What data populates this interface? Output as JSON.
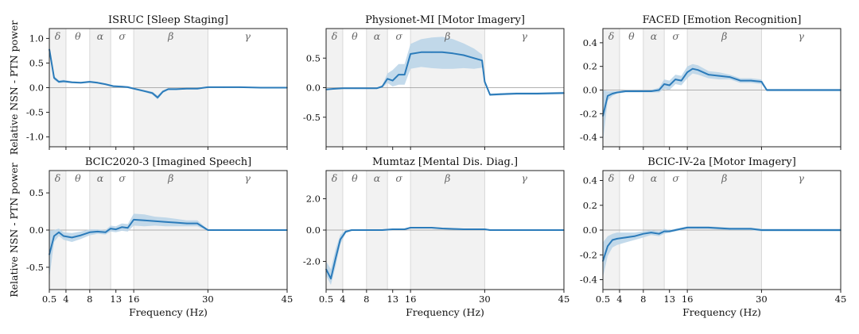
{
  "figure": {
    "ylabel": "Relative NSN - PTN power",
    "xlabel": "Frequency (Hz)",
    "xticks": [
      0.5,
      4,
      8,
      13,
      16,
      30,
      45
    ],
    "xtick_labels": [
      "0.5",
      "4",
      "8",
      "13",
      "16",
      "30",
      "45"
    ],
    "bands": [
      {
        "label": "δ",
        "range": [
          0.5,
          4
        ]
      },
      {
        "label": "θ",
        "range": [
          4,
          8
        ]
      },
      {
        "label": "α",
        "range": [
          8,
          12
        ]
      },
      {
        "label": "σ",
        "range": [
          12,
          16
        ]
      },
      {
        "label": "β",
        "range": [
          16,
          30
        ]
      },
      {
        "label": "γ",
        "range": [
          30,
          45
        ]
      }
    ],
    "colors": {
      "line": "#2b7bba",
      "band_fill": "#b9d3e8",
      "shade": "#f2f2f2",
      "zero": "#999999",
      "grid": "#d8d8d8"
    }
  },
  "chart_data": [
    {
      "type": "line",
      "title": "ISRUC [Sleep Staging]",
      "xlim": [
        0.5,
        45
      ],
      "ylim": [
        -1.2,
        1.2
      ],
      "yticks": [
        1.0,
        0.5,
        0.0,
        -0.5,
        -1.0
      ],
      "ytick_labels": [
        "1.0",
        "0.5",
        "0.0",
        "-0.5",
        "-1.0"
      ],
      "x": [
        0.5,
        1.5,
        2.5,
        3.5,
        5,
        6.5,
        8,
        9.5,
        11,
        12.5,
        14,
        15,
        16,
        18,
        19.5,
        20.5,
        21.5,
        22.5,
        24,
        26,
        28,
        30,
        33,
        36,
        40,
        45
      ],
      "y": [
        0.78,
        0.2,
        0.12,
        0.13,
        0.11,
        0.1,
        0.12,
        0.1,
        0.07,
        0.03,
        0.02,
        0.01,
        -0.02,
        -0.07,
        -0.11,
        -0.2,
        -0.08,
        -0.03,
        -0.03,
        -0.02,
        -0.02,
        0.01,
        0.01,
        0.01,
        0.0,
        0.0
      ],
      "band_low": [
        0.72,
        0.16,
        0.09,
        0.1,
        0.09,
        0.08,
        0.1,
        0.08,
        0.05,
        0.01,
        0.0,
        -0.01,
        -0.04,
        -0.09,
        -0.14,
        -0.24,
        -0.11,
        -0.05,
        -0.05,
        -0.03,
        -0.03,
        0.0,
        0.0,
        0.0,
        -0.01,
        -0.01
      ],
      "band_high": [
        0.84,
        0.24,
        0.15,
        0.16,
        0.13,
        0.12,
        0.14,
        0.12,
        0.09,
        0.05,
        0.04,
        0.03,
        0.0,
        -0.05,
        -0.08,
        -0.16,
        -0.05,
        -0.01,
        -0.01,
        -0.01,
        -0.01,
        0.02,
        0.02,
        0.02,
        0.01,
        0.01
      ]
    },
    {
      "type": "line",
      "title": "Physionet-MI [Motor Imagery]",
      "xlim": [
        0.5,
        45
      ],
      "ylim": [
        -1.0,
        1.0
      ],
      "yticks": [
        0.5,
        0.0,
        -0.5
      ],
      "ytick_labels": [
        "0.5",
        "0.0",
        "-0.5"
      ],
      "x": [
        0.5,
        2,
        4,
        6,
        8,
        10,
        11,
        12,
        13,
        14,
        15,
        16,
        18,
        20,
        22,
        24,
        26,
        28,
        29.5,
        30,
        31,
        33,
        36,
        40,
        45
      ],
      "y": [
        -0.03,
        -0.02,
        -0.01,
        -0.01,
        -0.01,
        -0.01,
        0.02,
        0.15,
        0.12,
        0.22,
        0.22,
        0.57,
        0.6,
        0.6,
        0.6,
        0.58,
        0.55,
        0.5,
        0.46,
        0.1,
        -0.12,
        -0.11,
        -0.1,
        -0.1,
        -0.09
      ],
      "band_low": [
        -0.04,
        -0.03,
        -0.02,
        -0.02,
        -0.02,
        -0.02,
        0.0,
        0.08,
        0.02,
        0.05,
        0.05,
        0.32,
        0.35,
        0.33,
        0.32,
        0.32,
        0.33,
        0.32,
        0.34,
        0.06,
        -0.14,
        -0.13,
        -0.12,
        -0.12,
        -0.11
      ],
      "band_high": [
        -0.02,
        -0.01,
        0.0,
        0.0,
        0.0,
        0.0,
        0.04,
        0.24,
        0.3,
        0.4,
        0.4,
        0.74,
        0.82,
        0.85,
        0.86,
        0.82,
        0.75,
        0.66,
        0.56,
        0.14,
        -0.1,
        -0.09,
        -0.08,
        -0.08,
        -0.07
      ]
    },
    {
      "type": "line",
      "title": "FACED [Emotion Recognition]",
      "xlim": [
        0.5,
        45
      ],
      "ylim": [
        -0.48,
        0.52
      ],
      "yticks": [
        0.4,
        0.2,
        0.0,
        -0.2,
        -0.4
      ],
      "ytick_labels": [
        "0.4",
        "0.2",
        "0.0",
        "-0.2",
        "-0.4"
      ],
      "x": [
        0.5,
        1.5,
        2.5,
        3.5,
        5,
        6.5,
        8,
        9.5,
        11,
        12,
        13,
        14,
        15,
        16,
        17,
        18,
        20,
        22,
        24,
        26,
        28,
        30,
        31,
        33,
        36,
        40,
        45
      ],
      "y": [
        -0.22,
        -0.05,
        -0.03,
        -0.02,
        -0.01,
        -0.01,
        -0.01,
        -0.01,
        0.0,
        0.05,
        0.04,
        0.09,
        0.08,
        0.15,
        0.18,
        0.17,
        0.13,
        0.12,
        0.11,
        0.08,
        0.08,
        0.07,
        0.0,
        0.0,
        0.0,
        0.0,
        0.0
      ],
      "band_low": [
        -0.44,
        -0.09,
        -0.05,
        -0.03,
        -0.02,
        -0.02,
        -0.02,
        -0.02,
        -0.02,
        0.01,
        0.0,
        0.05,
        0.04,
        0.1,
        0.14,
        0.13,
        0.1,
        0.09,
        0.09,
        0.06,
        0.06,
        0.05,
        -0.01,
        -0.01,
        -0.01,
        -0.01,
        -0.01
      ],
      "band_high": [
        0.0,
        -0.01,
        -0.01,
        -0.01,
        0.0,
        0.0,
        0.0,
        0.0,
        0.02,
        0.09,
        0.08,
        0.13,
        0.12,
        0.2,
        0.22,
        0.21,
        0.16,
        0.15,
        0.13,
        0.1,
        0.1,
        0.09,
        0.01,
        0.01,
        0.01,
        0.01,
        0.01
      ]
    },
    {
      "type": "line",
      "title": "BCIC2020-3 [Imagined Speech]",
      "xlim": [
        0.5,
        45
      ],
      "ylim": [
        -0.8,
        0.8
      ],
      "yticks": [
        0.5,
        0.0,
        -0.5
      ],
      "ytick_labels": [
        "0.5",
        "0.0",
        "-0.5"
      ],
      "x": [
        0.5,
        1.5,
        2.5,
        3.5,
        5,
        6.5,
        8,
        9.5,
        11,
        12,
        13,
        14,
        15,
        16,
        18,
        20,
        22,
        24,
        26,
        28,
        30,
        31,
        33,
        36,
        40,
        45
      ],
      "y": [
        -0.33,
        -0.08,
        -0.03,
        -0.08,
        -0.1,
        -0.07,
        -0.03,
        -0.02,
        -0.03,
        0.02,
        0.01,
        0.04,
        0.03,
        0.14,
        0.13,
        0.12,
        0.11,
        0.1,
        0.09,
        0.09,
        0.0,
        0.0,
        0.0,
        0.0,
        0.0,
        0.0
      ],
      "band_low": [
        -0.65,
        -0.16,
        -0.08,
        -0.13,
        -0.16,
        -0.12,
        -0.07,
        -0.05,
        -0.06,
        -0.02,
        -0.03,
        -0.01,
        -0.02,
        0.06,
        0.05,
        0.06,
        0.05,
        0.05,
        0.05,
        0.05,
        -0.01,
        -0.01,
        -0.01,
        -0.01,
        -0.01,
        -0.01
      ],
      "band_high": [
        -0.01,
        0.0,
        0.02,
        -0.03,
        -0.04,
        -0.02,
        0.01,
        0.01,
        0.0,
        0.06,
        0.05,
        0.09,
        0.08,
        0.22,
        0.21,
        0.18,
        0.17,
        0.15,
        0.13,
        0.13,
        0.01,
        0.01,
        0.01,
        0.01,
        0.01,
        0.01
      ]
    },
    {
      "type": "line",
      "title": "Mumtaz [Mental Dis. Diag.]",
      "xlim": [
        0.5,
        45
      ],
      "ylim": [
        -3.8,
        3.8
      ],
      "yticks": [
        2.0,
        0.0,
        -2.0
      ],
      "ytick_labels": [
        "2.0",
        "0.0",
        "-2.0"
      ],
      "x": [
        0.5,
        1.5,
        2.5,
        3.5,
        4.5,
        5.5,
        7,
        9,
        11,
        13,
        14,
        15,
        16,
        18,
        20,
        22,
        26,
        30,
        31,
        35,
        40,
        45
      ],
      "y": [
        -2.5,
        -3.1,
        -1.8,
        -0.6,
        -0.1,
        0.0,
        0.0,
        0.0,
        0.0,
        0.05,
        0.05,
        0.05,
        0.15,
        0.15,
        0.15,
        0.1,
        0.05,
        0.05,
        0.0,
        0.0,
        0.0,
        0.0
      ],
      "band_low": [
        -2.9,
        -3.5,
        -2.3,
        -0.9,
        -0.2,
        -0.05,
        -0.05,
        -0.05,
        -0.05,
        0.0,
        0.0,
        0.0,
        0.1,
        0.1,
        0.1,
        0.05,
        0.0,
        0.0,
        -0.05,
        -0.05,
        -0.05,
        -0.05
      ],
      "band_high": [
        -2.0,
        -2.5,
        -1.2,
        -0.3,
        0.0,
        0.05,
        0.05,
        0.05,
        0.05,
        0.1,
        0.1,
        0.1,
        0.2,
        0.2,
        0.2,
        0.15,
        0.1,
        0.1,
        0.05,
        0.05,
        0.05,
        0.05
      ]
    },
    {
      "type": "line",
      "title": "BCIC-IV-2a [Motor Imagery]",
      "xlim": [
        0.5,
        45
      ],
      "ylim": [
        -0.48,
        0.48
      ],
      "yticks": [
        0.4,
        0.2,
        0.0,
        -0.2,
        -0.4
      ],
      "ytick_labels": [
        "0.4",
        "0.2",
        "0.0",
        "-0.2",
        "-0.4"
      ],
      "x": [
        0.5,
        1.5,
        2.5,
        3.5,
        5,
        6.5,
        8,
        9.5,
        11,
        12,
        13,
        14,
        15,
        16,
        18,
        20,
        24,
        28,
        30,
        31,
        35,
        40,
        45
      ],
      "y": [
        -0.25,
        -0.13,
        -0.08,
        -0.07,
        -0.06,
        -0.05,
        -0.03,
        -0.02,
        -0.03,
        -0.01,
        -0.01,
        0.0,
        0.01,
        0.02,
        0.02,
        0.02,
        0.01,
        0.01,
        0.0,
        0.0,
        0.0,
        0.0,
        0.0
      ],
      "band_low": [
        -0.38,
        -0.21,
        -0.14,
        -0.12,
        -0.1,
        -0.08,
        -0.06,
        -0.04,
        -0.05,
        -0.03,
        -0.02,
        -0.01,
        0.0,
        0.01,
        0.01,
        0.01,
        0.0,
        0.0,
        -0.01,
        -0.01,
        -0.01,
        -0.01,
        -0.01
      ],
      "band_high": [
        -0.1,
        -0.05,
        -0.03,
        -0.02,
        -0.02,
        -0.02,
        -0.01,
        0.0,
        -0.01,
        0.01,
        0.0,
        0.01,
        0.02,
        0.03,
        0.03,
        0.03,
        0.02,
        0.02,
        0.01,
        0.01,
        0.01,
        0.01,
        0.01
      ]
    }
  ]
}
